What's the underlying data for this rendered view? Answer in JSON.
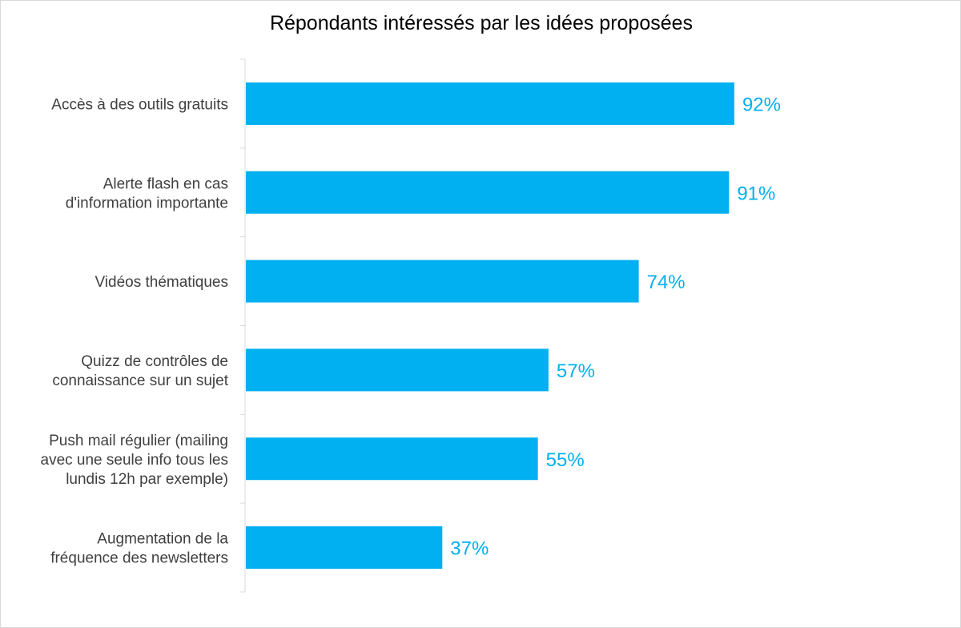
{
  "chart_data": {
    "type": "bar",
    "orientation": "horizontal",
    "title": "Répondants intéressés par les idées proposées",
    "xlabel": "",
    "ylabel": "",
    "categories": [
      [
        "Accès à des outils gratuits"
      ],
      [
        "Alerte flash en cas",
        "d'information importante"
      ],
      [
        "Vidéos thématiques"
      ],
      [
        "Quizz de contrôles de",
        "connaissance sur un sujet"
      ],
      [
        "Push mail régulier (mailing",
        "avec une seule info tous les",
        "lundis 12h par exemple)"
      ],
      [
        "Augmentation de la",
        "fréquence des newsletters"
      ]
    ],
    "values": [
      92,
      91,
      74,
      57,
      55,
      37
    ],
    "value_labels": [
      "92%",
      "91%",
      "74%",
      "57%",
      "55%",
      "37%"
    ],
    "xlim": [
      0,
      100
    ],
    "grid": false,
    "legend": "none",
    "bar_color": "#00B0F0",
    "label_color": "#00B0F0",
    "axis_color": "#d9d9d9"
  }
}
